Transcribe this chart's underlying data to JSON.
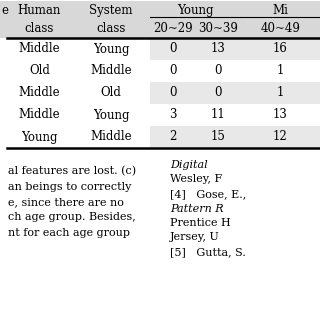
{
  "rows": [
    [
      "Middle",
      "Young",
      "0",
      "13",
      "16"
    ],
    [
      "Old",
      "Middle",
      "0",
      "0",
      "1"
    ],
    [
      "Middle",
      "Old",
      "0",
      "0",
      "1"
    ],
    [
      "Middle",
      "Young",
      "3",
      "11",
      "13"
    ],
    [
      "Young",
      "Middle",
      "2",
      "15",
      "12"
    ]
  ],
  "bg_white": "#ffffff",
  "bg_light": "#e8e8e8",
  "bg_header": "#d8d8d8",
  "text_color": "#000000",
  "bottom_left_text": [
    "al features are lost. (c)",
    "an beings to correctly",
    "e, since there are no",
    "ch age group. Besides,",
    "nt for each age group"
  ],
  "bottom_right_text": [
    [
      "Digital",
      true
    ],
    [
      "Wesley, F",
      false
    ],
    [
      "[4]   Gose, E.,",
      false
    ],
    [
      "Pattern R",
      true
    ],
    [
      "Prentice H",
      false
    ],
    [
      "Jersey, U",
      false
    ],
    [
      "[5]   Gutta, S.",
      false
    ]
  ]
}
